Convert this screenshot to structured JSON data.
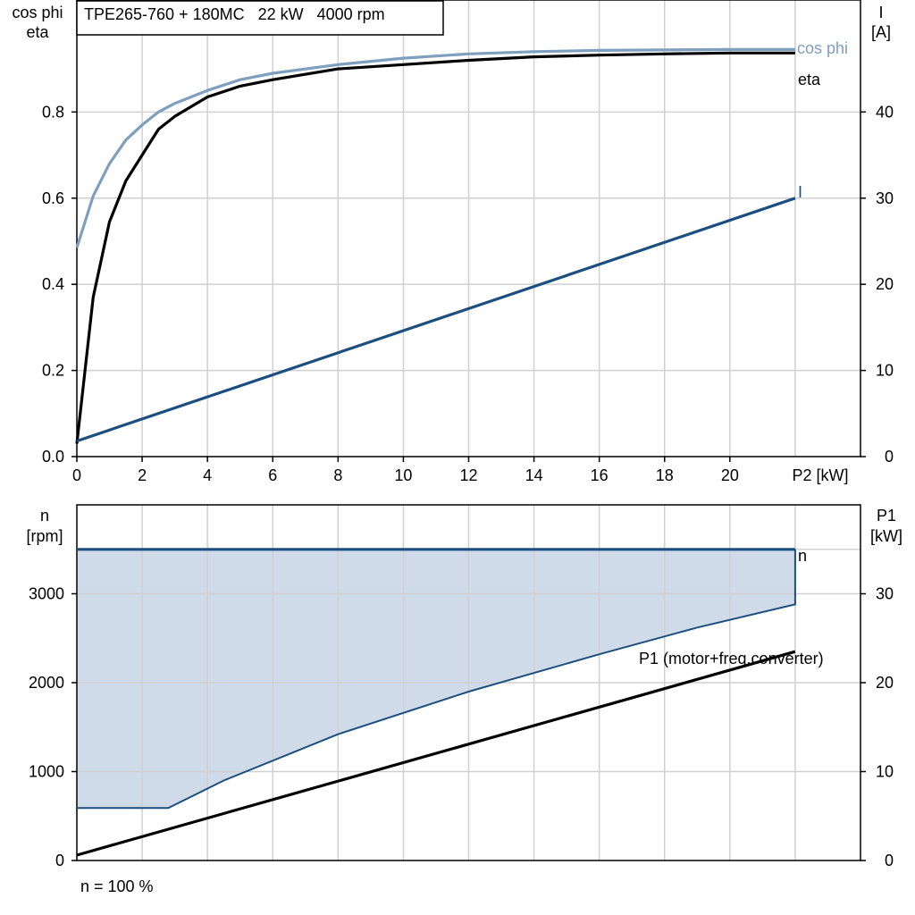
{
  "chart_data": [
    {
      "type": "line",
      "title_box": "TPE265-760 + 180MC   22 kW   4000 rpm",
      "xlabel": "P2 [kW]",
      "ylabel_left": [
        "cos phi",
        "eta"
      ],
      "ylabel_right": [
        "I",
        "[A]"
      ],
      "xlim": [
        0,
        24
      ],
      "x_ticks": [
        0,
        2,
        4,
        6,
        8,
        10,
        12,
        14,
        16,
        18,
        20
      ],
      "ylim_left": [
        0,
        1.06
      ],
      "y_ticks_left": [
        0.0,
        0.2,
        0.4,
        0.6,
        0.8
      ],
      "y_tick_labels_left": [
        "0.0",
        "0.2",
        "0.4",
        "0.6",
        "0.8"
      ],
      "ylim_right": [
        0,
        53
      ],
      "y_ticks_right": [
        0,
        10,
        20,
        30,
        40
      ],
      "grid": true,
      "series": [
        {
          "name": "cos phi",
          "axis": "left",
          "color": "#7f9fbf",
          "x": [
            0,
            0.5,
            1,
            1.5,
            2,
            2.5,
            3,
            4,
            5,
            6,
            8,
            10,
            12,
            14,
            16,
            18,
            20,
            22
          ],
          "y": [
            0.485,
            0.605,
            0.68,
            0.735,
            0.77,
            0.8,
            0.82,
            0.85,
            0.875,
            0.89,
            0.91,
            0.925,
            0.935,
            0.94,
            0.943,
            0.944,
            0.945,
            0.945
          ]
        },
        {
          "name": "eta",
          "axis": "left",
          "color": "#000000",
          "x": [
            0,
            0.5,
            1,
            1.5,
            2,
            2.5,
            3,
            4,
            5,
            6,
            8,
            10,
            12,
            14,
            16,
            18,
            20,
            22
          ],
          "y": [
            0.03,
            0.37,
            0.545,
            0.64,
            0.7,
            0.76,
            0.79,
            0.835,
            0.86,
            0.875,
            0.9,
            0.91,
            0.92,
            0.928,
            0.932,
            0.935,
            0.937,
            0.937
          ]
        },
        {
          "name": "I",
          "axis": "right",
          "color": "#1c4f80",
          "x": [
            0,
            22
          ],
          "y": [
            1.8,
            30
          ]
        }
      ]
    },
    {
      "type": "area",
      "xlim": [
        0,
        24
      ],
      "ylabel_left": [
        "n",
        "[rpm]"
      ],
      "ylabel_right": [
        "P1",
        "[kW]"
      ],
      "ylim_left": [
        0,
        4000
      ],
      "y_ticks_left": [
        0,
        1000,
        2000,
        3000
      ],
      "ylim_right": [
        0,
        40
      ],
      "y_ticks_right": [
        0,
        10,
        20,
        30
      ],
      "grid": true,
      "area_fill": "#cfdbe8",
      "area_outline_color": "#1c4f80",
      "area_upper": {
        "x": [
          0,
          22
        ],
        "y": [
          3500,
          3500
        ]
      },
      "area_lower": {
        "x": [
          0,
          2.8,
          4.5,
          8,
          12,
          16,
          19,
          22
        ],
        "y": [
          590,
          590,
          900,
          1420,
          1900,
          2320,
          2620,
          2880
        ]
      },
      "series": [
        {
          "name": "n",
          "axis": "left",
          "color": "#1c4f80",
          "x": [
            0,
            22
          ],
          "y": [
            3500,
            3500
          ]
        },
        {
          "name": "P1 (motor+freq.converter)",
          "axis": "right",
          "color": "#000000",
          "x": [
            0,
            22
          ],
          "y": [
            0.6,
            23.5
          ]
        }
      ],
      "footnote": "n = 100 %"
    }
  ]
}
